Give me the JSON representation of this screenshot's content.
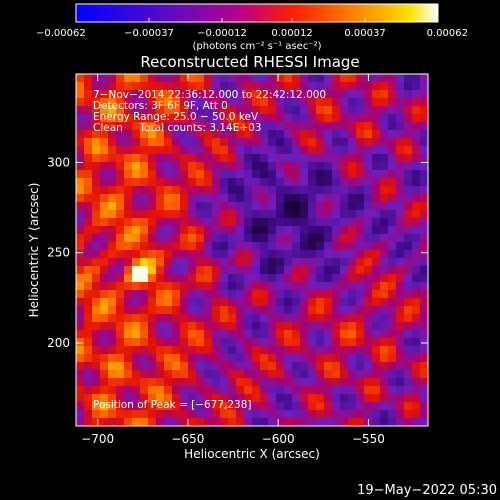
{
  "chart_data": {
    "type": "heatmap",
    "title": "Reconstructed RHESSI Image",
    "xlabel": "Heliocentric X (arcsec)",
    "ylabel": "Heliocentric Y (arcsec)",
    "xlim": [
      -712,
      -517
    ],
    "ylim": [
      154,
      349
    ],
    "xticks": [
      -700,
      -650,
      -600,
      -550
    ],
    "xtick_labels": [
      "−700",
      "−650",
      "−600",
      "−550"
    ],
    "yticks": [
      200,
      250,
      300
    ],
    "ytick_labels": [
      "200",
      "250",
      "300"
    ],
    "grid": false,
    "colorbar": {
      "min": -0.00062,
      "max": 0.00062,
      "ticks": [
        -0.00062,
        -0.00037,
        -0.00012,
        0.00012,
        0.00037,
        0.00062
      ],
      "tick_labels": [
        "−0.00062",
        "−0.00037",
        "−0.00012",
        "0.00012",
        "0.00037",
        "0.00062"
      ],
      "units": "(photons cm⁻² s⁻¹ asec⁻²)",
      "colormap": "rainbow (blue–purple–red–yellow–white)"
    },
    "annotations": {
      "time": "7−Nov−2014 22:36:12.000 to 22:42:12.000",
      "detectors": "Detectors: 3F 6F 9F, Att 0",
      "energy": "Energy Range: 25.0 − 50.0 keV",
      "clean": "Clean     Total counts: 3.14E+03",
      "peak": "Position of Peak = [−677,238]"
    },
    "peak": {
      "x": -677,
      "y": 238
    }
  },
  "footer": {
    "date": "19−May−2022 05:30"
  }
}
